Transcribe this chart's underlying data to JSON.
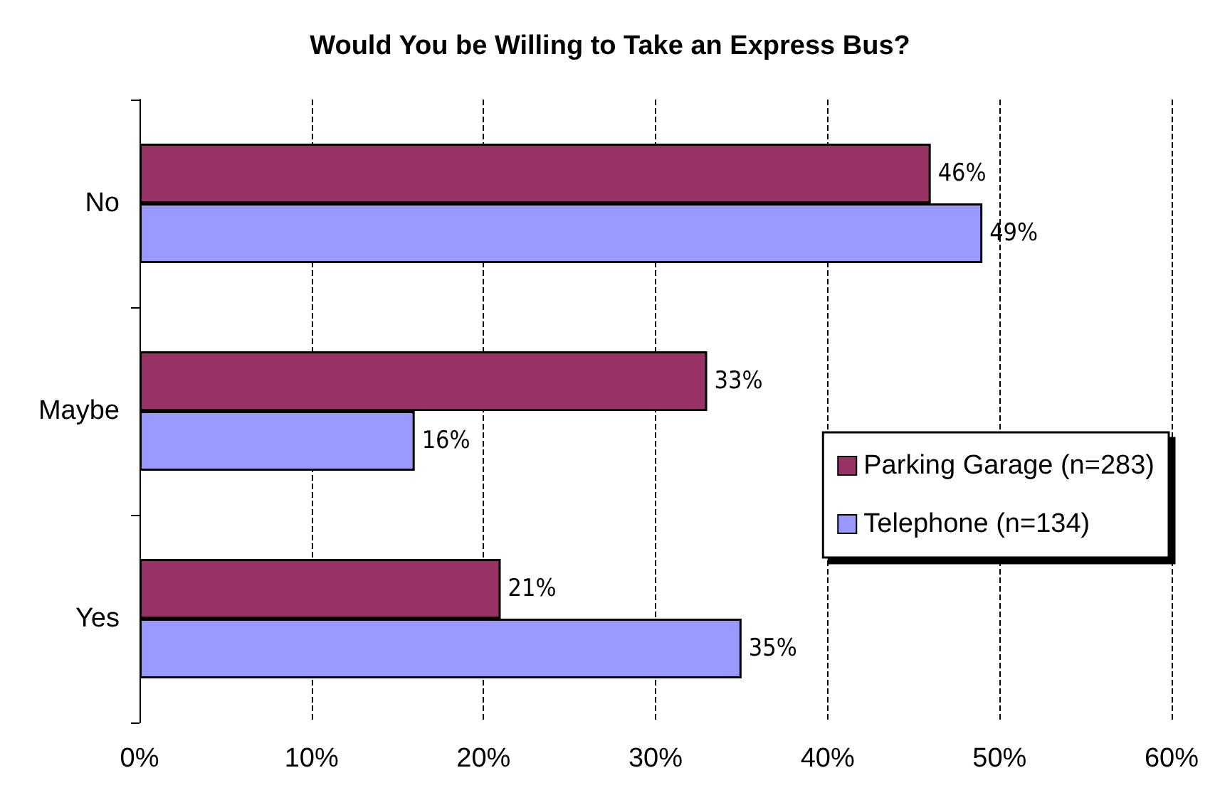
{
  "chart_data": {
    "type": "bar",
    "orientation": "horizontal",
    "title": "Would You be Willing to Take an Express Bus?",
    "categories": [
      "No",
      "Maybe",
      "Yes"
    ],
    "series": [
      {
        "name": "Parking Garage (n=283)",
        "color": "#993366",
        "values": [
          46,
          33,
          21
        ],
        "value_labels": [
          "46%",
          "33%",
          "21%"
        ]
      },
      {
        "name": "Telephone (n=134)",
        "color": "#9999ff",
        "values": [
          49,
          16,
          35
        ],
        "value_labels": [
          "49%",
          "16%",
          "35%"
        ]
      }
    ],
    "xlim": [
      0,
      60
    ],
    "xticks": [
      {
        "value": 0,
        "label": "0%"
      },
      {
        "value": 10,
        "label": "10%"
      },
      {
        "value": 20,
        "label": "20%"
      },
      {
        "value": 30,
        "label": "30%"
      },
      {
        "value": 40,
        "label": "40%"
      },
      {
        "value": 50,
        "label": "50%"
      },
      {
        "value": 60,
        "label": "60%"
      }
    ],
    "grid": "x",
    "legend": "right"
  }
}
